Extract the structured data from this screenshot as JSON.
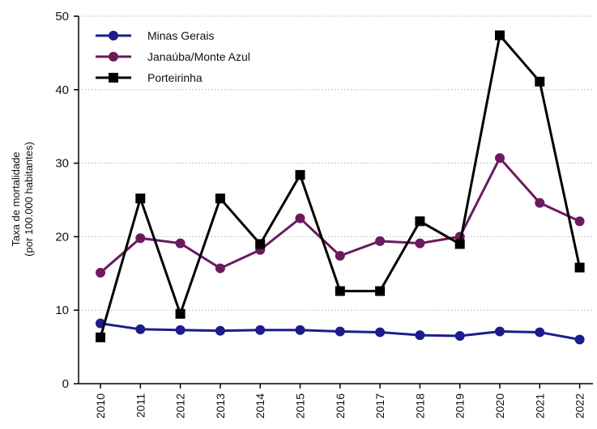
{
  "chart_data": {
    "type": "line",
    "title": "",
    "xlabel": "",
    "ylabel_line1": "Taxa de mortalidade",
    "ylabel_line2": "(por 100.000 habitantes)",
    "ylim": [
      0,
      50
    ],
    "y_ticks": [
      "0",
      "10",
      "20",
      "30",
      "40",
      "50"
    ],
    "y_tick_values": [
      0,
      10,
      20,
      30,
      40,
      50
    ],
    "grid": "horizontal dotted",
    "legend_position": "top-left",
    "categories": [
      "2010",
      "2011",
      "2012",
      "2013",
      "2014",
      "2015",
      "2016",
      "2017",
      "2018",
      "2019",
      "2020",
      "2021",
      "2022"
    ],
    "series": [
      {
        "name": "Minas Gerais",
        "color": "#1c1c8c",
        "marker": "circle",
        "values": [
          8.2,
          7.4,
          7.3,
          7.2,
          7.3,
          7.3,
          7.1,
          7.0,
          6.6,
          6.5,
          7.1,
          7.0,
          6.0
        ]
      },
      {
        "name": "Janaúba/Monte Azul",
        "color": "#6b1a5e",
        "marker": "circle",
        "values": [
          15.1,
          19.8,
          19.1,
          15.7,
          18.2,
          22.5,
          17.4,
          19.4,
          19.1,
          20.0,
          30.7,
          24.6,
          22.1
        ]
      },
      {
        "name": "Porteirinha",
        "color": "#000000",
        "marker": "square",
        "values": [
          6.3,
          25.2,
          9.5,
          25.2,
          19.0,
          28.4,
          12.6,
          12.6,
          22.1,
          19.0,
          47.4,
          41.1,
          15.8
        ]
      }
    ]
  }
}
